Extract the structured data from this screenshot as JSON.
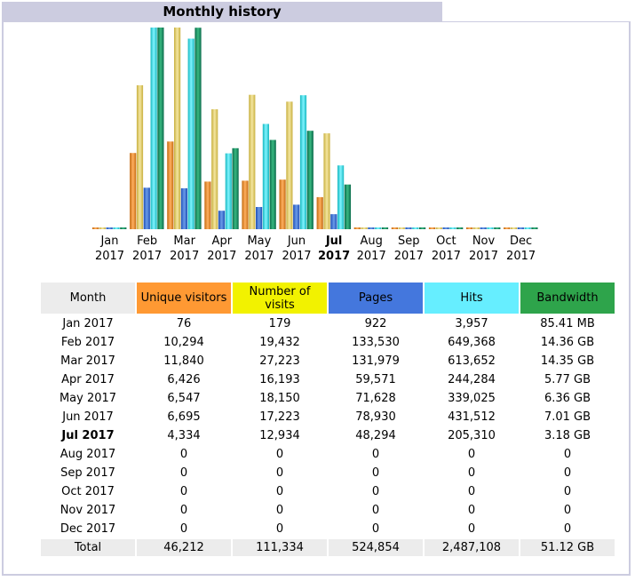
{
  "title": "Monthly history",
  "colors": {
    "unique_visitors": "#ff9933",
    "number_of_visits": "#f2f200",
    "pages": "#4477dd",
    "hits": "#66eeff",
    "bandwidth": "#2ea44b",
    "header_bg": "#cccce0"
  },
  "chart_data": {
    "type": "bar",
    "title": "Monthly history",
    "categories": [
      {
        "month": "Jan",
        "year": "2017",
        "current": false
      },
      {
        "month": "Feb",
        "year": "2017",
        "current": false
      },
      {
        "month": "Mar",
        "year": "2017",
        "current": false
      },
      {
        "month": "Apr",
        "year": "2017",
        "current": false
      },
      {
        "month": "May",
        "year": "2017",
        "current": false
      },
      {
        "month": "Jun",
        "year": "2017",
        "current": false
      },
      {
        "month": "Jul",
        "year": "2017",
        "current": true
      },
      {
        "month": "Aug",
        "year": "2017",
        "current": false
      },
      {
        "month": "Sep",
        "year": "2017",
        "current": false
      },
      {
        "month": "Oct",
        "year": "2017",
        "current": false
      },
      {
        "month": "Nov",
        "year": "2017",
        "current": false
      },
      {
        "month": "Dec",
        "year": "2017",
        "current": false
      }
    ],
    "series": [
      {
        "name": "Unique visitors",
        "values": [
          76,
          10294,
          11840,
          6426,
          6547,
          6695,
          4334,
          0,
          0,
          0,
          0,
          0
        ]
      },
      {
        "name": "Number of visits",
        "values": [
          179,
          19432,
          27223,
          16193,
          18150,
          17223,
          12934,
          0,
          0,
          0,
          0,
          0
        ]
      },
      {
        "name": "Pages",
        "values": [
          922,
          133530,
          131979,
          59571,
          71628,
          78930,
          48294,
          0,
          0,
          0,
          0,
          0
        ]
      },
      {
        "name": "Hits",
        "values": [
          3957,
          649368,
          613652,
          244284,
          339025,
          431512,
          205310,
          0,
          0,
          0,
          0,
          0
        ]
      },
      {
        "name": "Bandwidth",
        "values_gb": [
          0.0834,
          14.36,
          14.35,
          5.77,
          6.36,
          7.01,
          3.18,
          0,
          0,
          0,
          0,
          0
        ]
      }
    ]
  },
  "table": {
    "headers": {
      "month": "Month",
      "unique_visitors": "Unique visitors",
      "number_of_visits": "Number of visits",
      "pages": "Pages",
      "hits": "Hits",
      "bandwidth": "Bandwidth"
    },
    "rows": [
      {
        "month": "Jan 2017",
        "visitors": "76",
        "visits": "179",
        "pages": "922",
        "hits": "3,957",
        "bandwidth": "85.41 MB"
      },
      {
        "month": "Feb 2017",
        "visitors": "10,294",
        "visits": "19,432",
        "pages": "133,530",
        "hits": "649,368",
        "bandwidth": "14.36 GB"
      },
      {
        "month": "Mar 2017",
        "visitors": "11,840",
        "visits": "27,223",
        "pages": "131,979",
        "hits": "613,652",
        "bandwidth": "14.35 GB"
      },
      {
        "month": "Apr 2017",
        "visitors": "6,426",
        "visits": "16,193",
        "pages": "59,571",
        "hits": "244,284",
        "bandwidth": "5.77 GB"
      },
      {
        "month": "May 2017",
        "visitors": "6,547",
        "visits": "18,150",
        "pages": "71,628",
        "hits": "339,025",
        "bandwidth": "6.36 GB"
      },
      {
        "month": "Jun 2017",
        "visitors": "6,695",
        "visits": "17,223",
        "pages": "78,930",
        "hits": "431,512",
        "bandwidth": "7.01 GB"
      },
      {
        "month": "Jul 2017",
        "visitors": "4,334",
        "visits": "12,934",
        "pages": "48,294",
        "hits": "205,310",
        "bandwidth": "3.18 GB",
        "current": true
      },
      {
        "month": "Aug 2017",
        "visitors": "0",
        "visits": "0",
        "pages": "0",
        "hits": "0",
        "bandwidth": "0"
      },
      {
        "month": "Sep 2017",
        "visitors": "0",
        "visits": "0",
        "pages": "0",
        "hits": "0",
        "bandwidth": "0"
      },
      {
        "month": "Oct 2017",
        "visitors": "0",
        "visits": "0",
        "pages": "0",
        "hits": "0",
        "bandwidth": "0"
      },
      {
        "month": "Nov 2017",
        "visitors": "0",
        "visits": "0",
        "pages": "0",
        "hits": "0",
        "bandwidth": "0"
      },
      {
        "month": "Dec 2017",
        "visitors": "0",
        "visits": "0",
        "pages": "0",
        "hits": "0",
        "bandwidth": "0"
      }
    ],
    "total": {
      "label": "Total",
      "visitors": "46,212",
      "visits": "111,334",
      "pages": "524,854",
      "hits": "2,487,108",
      "bandwidth": "51.12 GB"
    }
  }
}
